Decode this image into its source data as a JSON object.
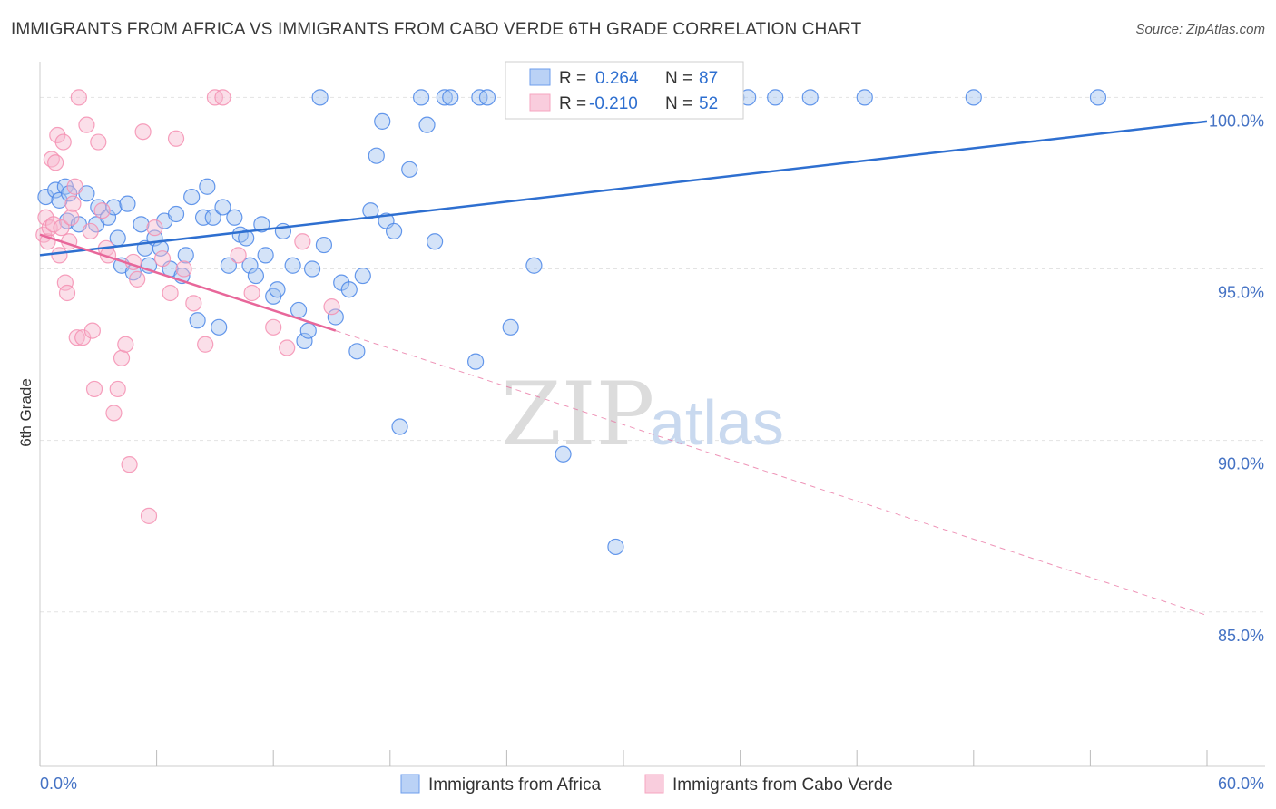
{
  "header": {
    "title": "IMMIGRANTS FROM AFRICA VS IMMIGRANTS FROM CABO VERDE 6TH GRADE CORRELATION CHART",
    "source": "Source: ZipAtlas.com"
  },
  "watermark": {
    "zip": "ZIP",
    "atlas": "atlas"
  },
  "stats": {
    "r_label": "R =",
    "n_label": "N =",
    "rows": [
      {
        "r": "0.264",
        "n": "87",
        "color": "#4a86e8"
      },
      {
        "r": "-0.210",
        "n": "52",
        "color": "#f48fb1"
      }
    ]
  },
  "chart_data": {
    "type": "scatter",
    "title": "IMMIGRANTS FROM AFRICA VS IMMIGRANTS FROM CABO VERDE 6TH GRADE CORRELATION CHART",
    "xlabel": "",
    "ylabel": "6th Grade",
    "xlim": [
      0,
      60
    ],
    "ylim": [
      80.5,
      101.2
    ],
    "x_tick_labels": [
      "0.0%",
      "60.0%"
    ],
    "y_ticks": [
      {
        "value": 85,
        "label": "85.0%"
      },
      {
        "value": 90,
        "label": "90.0%"
      },
      {
        "value": 95,
        "label": "95.0%"
      },
      {
        "value": 100,
        "label": "100.0%"
      }
    ],
    "grid": true,
    "legend_position": "bottom",
    "series": [
      {
        "name": "Immigrants from Africa",
        "color": "#4a86e8",
        "trend": {
          "x": [
            0,
            60
          ],
          "y": [
            95.4,
            99.3
          ],
          "dashed_extension": false
        },
        "points": [
          [
            0.3,
            97.1
          ],
          [
            0.8,
            97.3
          ],
          [
            1.0,
            97.0
          ],
          [
            1.3,
            97.4
          ],
          [
            1.5,
            97.2
          ],
          [
            1.4,
            96.4
          ],
          [
            2.0,
            96.3
          ],
          [
            2.4,
            97.2
          ],
          [
            2.9,
            96.3
          ],
          [
            3.0,
            96.8
          ],
          [
            3.5,
            96.5
          ],
          [
            3.8,
            96.8
          ],
          [
            4.0,
            95.9
          ],
          [
            4.5,
            96.9
          ],
          [
            4.2,
            95.1
          ],
          [
            4.8,
            94.9
          ],
          [
            5.2,
            96.3
          ],
          [
            5.4,
            95.6
          ],
          [
            5.6,
            95.1
          ],
          [
            5.9,
            95.9
          ],
          [
            6.2,
            95.6
          ],
          [
            6.4,
            96.4
          ],
          [
            6.7,
            95.0
          ],
          [
            7.0,
            96.6
          ],
          [
            7.3,
            94.8
          ],
          [
            7.5,
            95.4
          ],
          [
            7.8,
            97.1
          ],
          [
            8.1,
            93.5
          ],
          [
            8.4,
            96.5
          ],
          [
            8.6,
            97.4
          ],
          [
            8.9,
            96.5
          ],
          [
            9.2,
            93.3
          ],
          [
            9.4,
            96.8
          ],
          [
            9.7,
            95.1
          ],
          [
            10.0,
            96.5
          ],
          [
            10.3,
            96.0
          ],
          [
            10.6,
            95.9
          ],
          [
            10.8,
            95.1
          ],
          [
            11.1,
            94.8
          ],
          [
            11.4,
            96.3
          ],
          [
            11.6,
            95.4
          ],
          [
            12.0,
            94.2
          ],
          [
            12.2,
            94.4
          ],
          [
            12.5,
            96.1
          ],
          [
            13.0,
            95.1
          ],
          [
            13.3,
            93.8
          ],
          [
            13.6,
            92.9
          ],
          [
            13.8,
            93.2
          ],
          [
            14.0,
            95.0
          ],
          [
            14.4,
            100.0
          ],
          [
            14.6,
            95.7
          ],
          [
            15.2,
            93.6
          ],
          [
            15.5,
            94.6
          ],
          [
            15.9,
            94.4
          ],
          [
            16.3,
            92.6
          ],
          [
            16.6,
            94.8
          ],
          [
            17.0,
            96.7
          ],
          [
            17.3,
            98.3
          ],
          [
            17.6,
            99.3
          ],
          [
            17.8,
            96.4
          ],
          [
            18.2,
            96.1
          ],
          [
            18.5,
            90.4
          ],
          [
            19.0,
            97.9
          ],
          [
            19.6,
            100.0
          ],
          [
            19.9,
            99.2
          ],
          [
            20.3,
            95.8
          ],
          [
            20.8,
            100.0
          ],
          [
            21.1,
            100.0
          ],
          [
            22.4,
            92.3
          ],
          [
            22.6,
            100.0
          ],
          [
            23.0,
            100.0
          ],
          [
            24.2,
            93.3
          ],
          [
            24.6,
            100.0
          ],
          [
            25.4,
            95.1
          ],
          [
            26.4,
            100.0
          ],
          [
            26.9,
            89.6
          ],
          [
            28.1,
            100.0
          ],
          [
            29.6,
            86.9
          ],
          [
            30.8,
            100.0
          ],
          [
            33.8,
            100.0
          ],
          [
            35.8,
            100.0
          ],
          [
            36.4,
            100.0
          ],
          [
            37.8,
            100.0
          ],
          [
            39.6,
            100.0
          ],
          [
            42.4,
            100.0
          ],
          [
            48.0,
            100.0
          ],
          [
            54.4,
            100.0
          ]
        ]
      },
      {
        "name": "Immigrants from Cabo Verde",
        "color": "#f48fb1",
        "trend": {
          "x": [
            0,
            15.2
          ],
          "y": [
            96.0,
            93.2
          ],
          "extension": {
            "x": [
              15.2,
              60
            ],
            "y": [
              93.2,
              84.9
            ]
          },
          "dashed_extension": true
        },
        "points": [
          [
            0.2,
            96.0
          ],
          [
            0.3,
            96.5
          ],
          [
            0.4,
            95.8
          ],
          [
            0.5,
            96.2
          ],
          [
            0.6,
            98.2
          ],
          [
            0.7,
            96.3
          ],
          [
            0.8,
            98.1
          ],
          [
            0.9,
            98.9
          ],
          [
            1.0,
            95.4
          ],
          [
            1.1,
            96.2
          ],
          [
            1.2,
            98.7
          ],
          [
            1.3,
            94.6
          ],
          [
            1.4,
            94.3
          ],
          [
            1.5,
            95.8
          ],
          [
            1.6,
            96.5
          ],
          [
            1.7,
            96.9
          ],
          [
            1.8,
            97.4
          ],
          [
            1.9,
            93.0
          ],
          [
            2.0,
            100.0
          ],
          [
            2.2,
            93.0
          ],
          [
            2.4,
            99.2
          ],
          [
            2.6,
            96.1
          ],
          [
            2.7,
            93.2
          ],
          [
            2.8,
            91.5
          ],
          [
            3.0,
            98.7
          ],
          [
            3.2,
            96.7
          ],
          [
            3.4,
            95.6
          ],
          [
            3.5,
            95.4
          ],
          [
            3.8,
            90.8
          ],
          [
            4.0,
            91.5
          ],
          [
            4.2,
            92.4
          ],
          [
            4.4,
            92.8
          ],
          [
            4.6,
            89.3
          ],
          [
            4.8,
            95.2
          ],
          [
            5.0,
            94.7
          ],
          [
            5.3,
            99.0
          ],
          [
            5.6,
            87.8
          ],
          [
            5.9,
            96.2
          ],
          [
            6.3,
            95.3
          ],
          [
            6.7,
            94.3
          ],
          [
            7.0,
            98.8
          ],
          [
            7.4,
            95.0
          ],
          [
            7.9,
            94.0
          ],
          [
            8.5,
            92.8
          ],
          [
            9.0,
            100.0
          ],
          [
            9.4,
            100.0
          ],
          [
            10.2,
            95.4
          ],
          [
            10.9,
            94.3
          ],
          [
            12.0,
            93.3
          ],
          [
            12.7,
            92.7
          ],
          [
            13.5,
            95.8
          ],
          [
            15.0,
            93.9
          ]
        ]
      }
    ]
  }
}
